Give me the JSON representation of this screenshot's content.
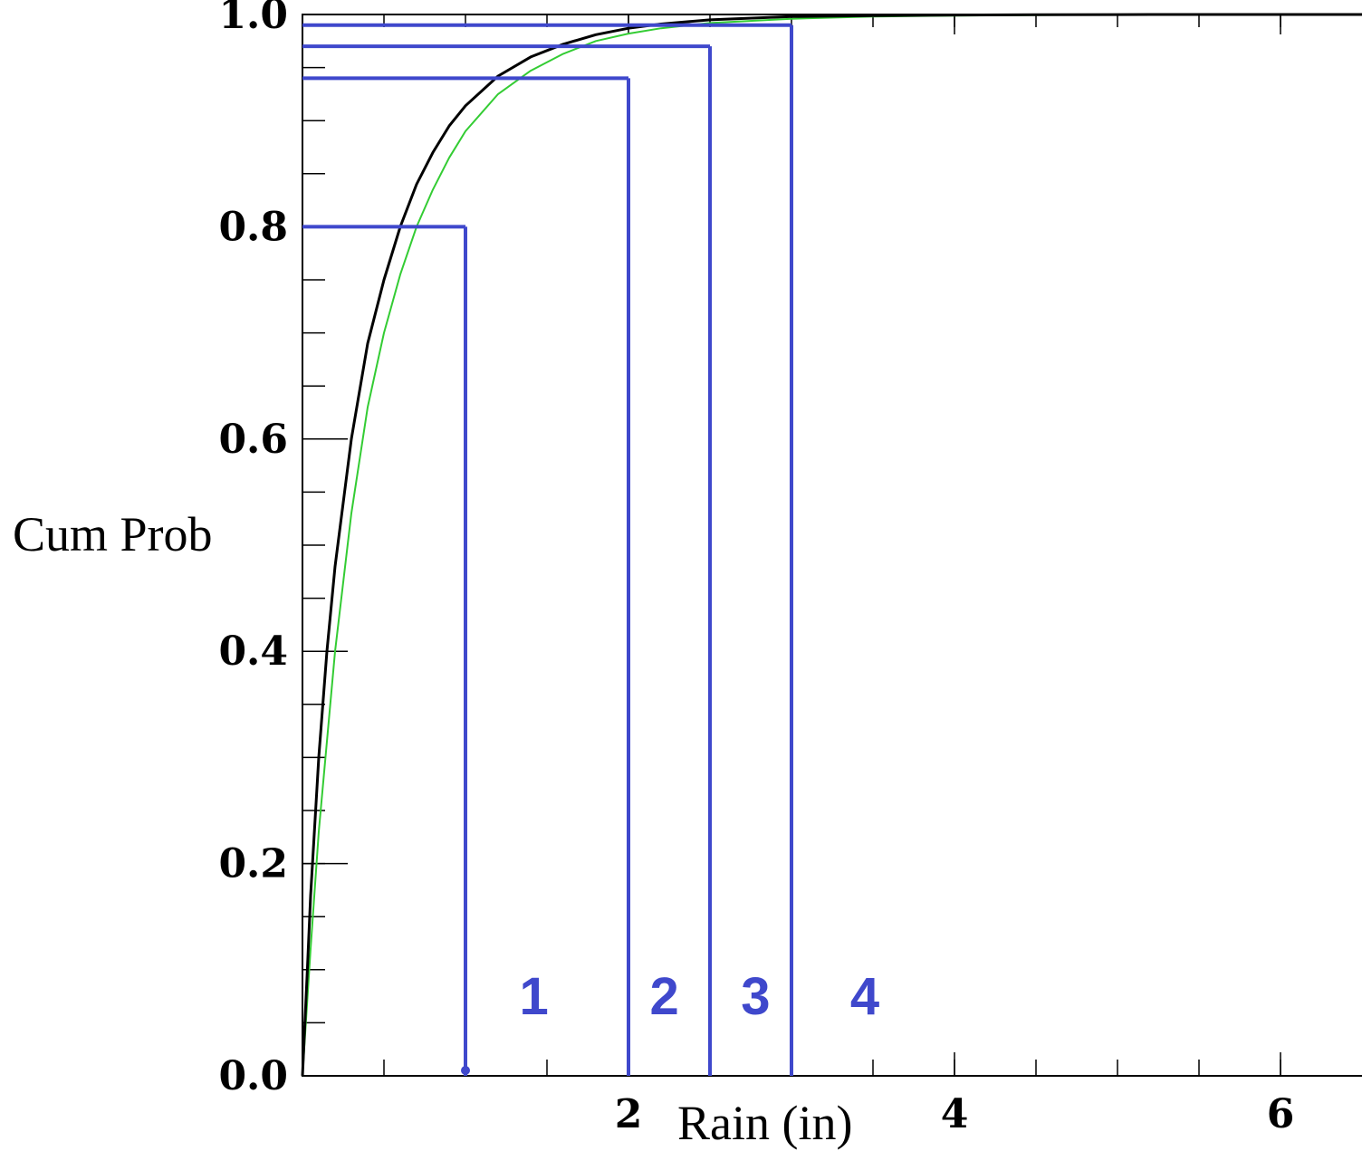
{
  "chart_data": {
    "type": "line",
    "xlabel": "Rain (in)",
    "ylabel": "Cum Prob",
    "xlim": [
      0,
      6.5
    ],
    "ylim": [
      0,
      1
    ],
    "x_ticks": [
      {
        "value": 2,
        "label": "2"
      },
      {
        "value": 4,
        "label": "4"
      },
      {
        "value": 6,
        "label": "6"
      }
    ],
    "x_minor_step": 0.5,
    "y_ticks": [
      {
        "value": 0.0,
        "label": "0.0"
      },
      {
        "value": 0.2,
        "label": "0.2"
      },
      {
        "value": 0.4,
        "label": "0.4"
      },
      {
        "value": 0.6,
        "label": "0.6"
      },
      {
        "value": 0.8,
        "label": "0.8"
      },
      {
        "value": 1.0,
        "label": "1.0"
      }
    ],
    "y_minor_step": 0.05,
    "grid": false,
    "series": [
      {
        "color": "#000000",
        "x": [
          0,
          0.03,
          0.05,
          0.1,
          0.15,
          0.2,
          0.3,
          0.4,
          0.5,
          0.6,
          0.7,
          0.8,
          0.9,
          1.0,
          1.2,
          1.4,
          1.6,
          1.8,
          2.0,
          2.2,
          2.5,
          3.0,
          3.5,
          4.0,
          4.5,
          5.0,
          5.5,
          6.0,
          6.5
        ],
        "y": [
          0,
          0.1,
          0.17,
          0.3,
          0.4,
          0.48,
          0.6,
          0.69,
          0.75,
          0.8,
          0.84,
          0.87,
          0.895,
          0.914,
          0.942,
          0.96,
          0.972,
          0.981,
          0.987,
          0.991,
          0.995,
          0.998,
          0.999,
          0.9995,
          0.9998,
          0.9999,
          1,
          1,
          1
        ]
      },
      {
        "color": "#33cc33",
        "x": [
          0,
          0.05,
          0.1,
          0.2,
          0.3,
          0.4,
          0.5,
          0.6,
          0.7,
          0.8,
          0.9,
          1.0,
          1.2,
          1.4,
          1.6,
          1.8,
          2.0,
          2.2,
          2.5,
          3.0,
          3.5,
          4.0,
          4.5,
          5.0,
          5.5,
          6.0,
          6.5
        ],
        "y": [
          0,
          0.12,
          0.23,
          0.4,
          0.53,
          0.63,
          0.7,
          0.755,
          0.8,
          0.835,
          0.865,
          0.89,
          0.925,
          0.947,
          0.963,
          0.975,
          0.982,
          0.987,
          0.992,
          0.996,
          0.998,
          0.999,
          0.9995,
          0.9998,
          1,
          1,
          1
        ]
      }
    ],
    "reference_lines": [
      {
        "x": 1.0,
        "y": 0.8
      },
      {
        "x": 2.0,
        "y": 0.94
      },
      {
        "x": 2.5,
        "y": 0.97
      },
      {
        "x": 3.0,
        "y": 0.99
      }
    ],
    "reference_color": "#3f48cc",
    "region_labels": [
      {
        "text": "1",
        "x": 1.42,
        "y": 0.075
      },
      {
        "text": "2",
        "x": 2.22,
        "y": 0.075
      },
      {
        "text": "3",
        "x": 2.78,
        "y": 0.075
      },
      {
        "text": "4",
        "x": 3.45,
        "y": 0.075
      }
    ]
  }
}
